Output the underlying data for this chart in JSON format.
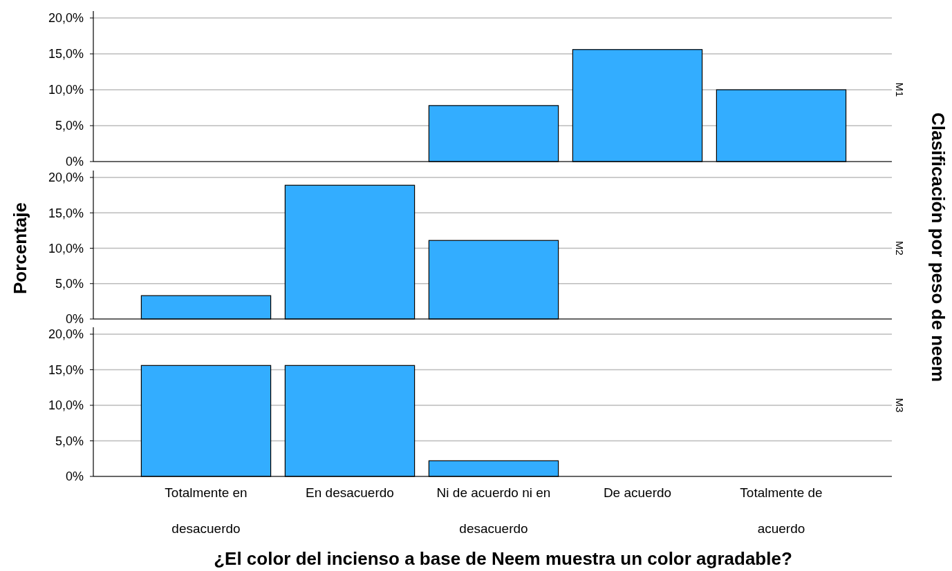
{
  "chart_data": [
    {
      "type": "bar",
      "title": "M1",
      "values": [
        0,
        0,
        7.8,
        15.6,
        10.0
      ],
      "color": "#33adff",
      "ylim": [
        0,
        20
      ],
      "yticks": [
        {
          "value": 0,
          "label": "0%"
        },
        {
          "value": 5,
          "label": "5,0%"
        },
        {
          "value": 10,
          "label": "10,0%"
        },
        {
          "value": 15,
          "label": "15,0%"
        },
        {
          "value": 20,
          "label": "20,0%"
        }
      ],
      "grid": "y",
      "tick_labels": "y"
    },
    {
      "type": "bar",
      "title": "M2",
      "ylabel": "Porcentaje",
      "values": [
        3.3,
        18.9,
        11.1,
        0,
        0
      ],
      "color": "#33adff",
      "ylim": [
        0,
        20
      ],
      "yticks": [
        {
          "value": 0,
          "label": "0%"
        },
        {
          "value": 5,
          "label": "5,0%"
        },
        {
          "value": 10,
          "label": "10,0%"
        },
        {
          "value": 15,
          "label": "15,0%"
        },
        {
          "value": 20,
          "label": "20,0%"
        }
      ],
      "grid": "y",
      "tick_labels": "y",
      "annotations": [
        "Clasificación por peso de neem"
      ]
    },
    {
      "type": "bar",
      "title": "M3",
      "xlabel": "¿El color del incienso a base de Neem muestra un color agradable?",
      "categories": [
        "Totalmente en desacuerdo",
        "En desacuerdo",
        "Ni de acuerdo ni en desacuerdo",
        "De acuerdo",
        "Totalmente de acuerdo"
      ],
      "values": [
        15.6,
        15.6,
        2.2,
        0,
        0
      ],
      "color": "#33adff",
      "ylim": [
        0,
        20
      ],
      "yticks": [
        {
          "value": 0,
          "label": "0%"
        },
        {
          "value": 5,
          "label": "5,0%"
        },
        {
          "value": 10,
          "label": "10,0%"
        },
        {
          "value": 15,
          "label": "15,0%"
        },
        {
          "value": 20,
          "label": "20,0%"
        }
      ],
      "grid": "y"
    }
  ]
}
